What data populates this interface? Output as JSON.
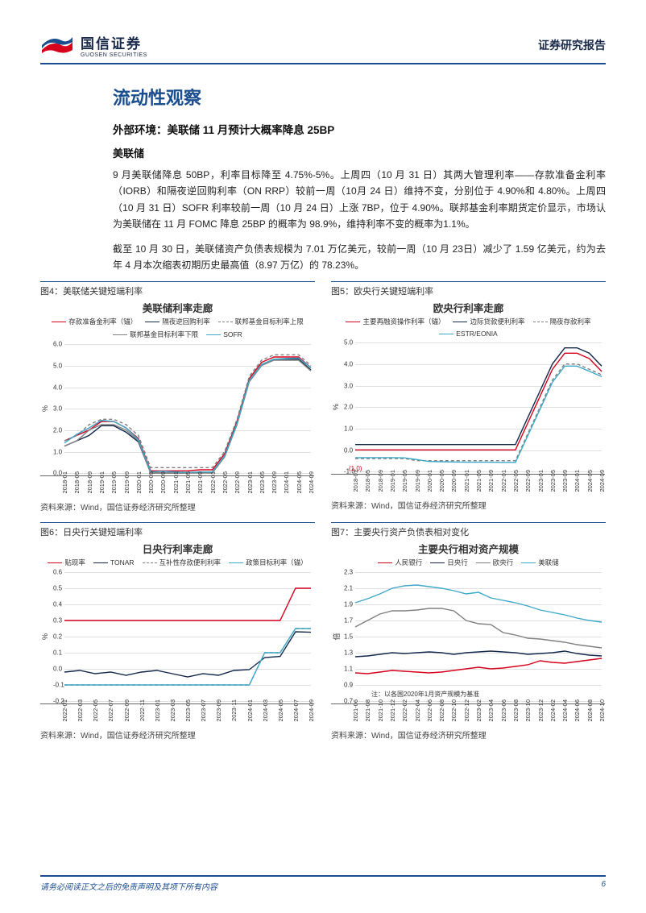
{
  "header": {
    "logo_cn": "国信证券",
    "logo_en": "GUOSEN SECURITIES",
    "report_type": "证券研究报告"
  },
  "title": "流动性观察",
  "section_title": "外部环境：美联储 11 月预计大概率降息 25BP",
  "subsection": "美联储",
  "paragraphs": [
    "9 月美联储降息 50BP，利率目标降至 4.75%-5%。上周四（10 月 31 日）其两大管理利率——存款准备金利率（IORB）和隔夜逆回购利率（ON RRP）较前一周（10月 24 日）维持不变，分别位于 4.90%和 4.80%。上周四（10 月 31 日）SOFR 利率较前一周（10 月 24 日）上涨 7BP，位于 4.90%。联邦基金利率期货定价显示，市场认为美联储在 11 月 FOMC 降息 25BP 的概率为 98.9%，维持利率不变的概率为1.1%。",
    "截至 10 月 30 日，美联储资产负债表规模为 7.01 万亿美元，较前一周（10 月 23日）减少了 1.59 亿美元，约为去年 4 月本次缩表初期历史最高值（8.97 万亿）的 78.23%。"
  ],
  "source_text": "资料来源：Wind，国信证券经济研究所整理",
  "footer": {
    "disclaimer": "请务必阅读正文之后的免责声明及其项下所有内容",
    "page": "6"
  },
  "colors": {
    "brand_blue": "#1a4d8f",
    "red": "#d6001c",
    "navy": "#14284b",
    "grey": "#808080",
    "cyan": "#3da9c9",
    "grid": "#e0e0e0",
    "axis": "#666666",
    "text": "#333333"
  },
  "chart4": {
    "type": "line",
    "caption": "图4：美联储关键短端利率",
    "title": "美联储利率走廊",
    "ylabel": "%",
    "ylim": [
      0,
      6
    ],
    "ytick_step": 1,
    "legend": [
      {
        "label": "存款准备金利率（锚）",
        "color": "#d6001c",
        "dash": "solid"
      },
      {
        "label": "隔夜逆回购利率",
        "color": "#14284b",
        "dash": "solid"
      },
      {
        "label": "联邦基金目标利率上限",
        "color": "#808080",
        "dash": "dashed"
      },
      {
        "label": "联邦基金目标利率下限",
        "color": "#808080",
        "dash": "solid"
      },
      {
        "label": "SOFR",
        "color": "#3da9c9",
        "dash": "solid"
      }
    ],
    "x_ticks": [
      "2018-01",
      "2018-05",
      "2018-09",
      "2019-01",
      "2019-05",
      "2019-09",
      "2020-01",
      "2020-05",
      "2020-09",
      "2021-01",
      "2021-05",
      "2021-09",
      "2022-01",
      "2022-05",
      "2022-09",
      "2023-01",
      "2023-05",
      "2023-09",
      "2024-01",
      "2024-05",
      "2024-09"
    ],
    "series": {
      "iorb": [
        1.5,
        1.75,
        2.0,
        2.4,
        2.4,
        2.1,
        1.6,
        0.1,
        0.1,
        0.1,
        0.1,
        0.15,
        0.15,
        0.9,
        2.4,
        4.4,
        5.15,
        5.4,
        5.4,
        5.4,
        4.9
      ],
      "onrrp": [
        1.25,
        1.5,
        1.75,
        2.2,
        2.2,
        1.9,
        1.45,
        0.0,
        0.0,
        0.0,
        0.0,
        0.05,
        0.05,
        0.8,
        2.3,
        4.3,
        5.05,
        5.3,
        5.3,
        5.3,
        4.8
      ],
      "upper": [
        1.5,
        1.75,
        2.25,
        2.5,
        2.5,
        2.25,
        1.75,
        0.25,
        0.25,
        0.25,
        0.25,
        0.25,
        0.25,
        1.0,
        2.5,
        4.5,
        5.25,
        5.5,
        5.5,
        5.5,
        5.0
      ],
      "lower": [
        1.25,
        1.5,
        2.0,
        2.25,
        2.25,
        2.0,
        1.5,
        0.0,
        0.0,
        0.0,
        0.0,
        0.0,
        0.0,
        0.75,
        2.25,
        4.25,
        5.0,
        5.25,
        5.25,
        5.25,
        4.75
      ],
      "sofr": [
        1.4,
        1.8,
        2.1,
        2.45,
        2.4,
        2.1,
        1.55,
        0.05,
        0.08,
        0.05,
        0.03,
        0.05,
        0.05,
        0.8,
        2.3,
        4.3,
        5.05,
        5.3,
        5.33,
        5.35,
        4.9
      ]
    }
  },
  "chart5": {
    "type": "line",
    "caption": "图5：欧央行关键短端利率",
    "title": "欧央行利率走廊",
    "ylabel": "%",
    "ylim": [
      -1,
      5
    ],
    "yticks": [
      -1,
      0,
      1,
      2,
      3,
      4,
      5
    ],
    "legend": [
      {
        "label": "主要再融资操作利率（锚）",
        "color": "#d6001c",
        "dash": "solid"
      },
      {
        "label": "边际贷款便利利率",
        "color": "#14284b",
        "dash": "solid"
      },
      {
        "label": "隔夜存款利率",
        "color": "#808080",
        "dash": "dashed"
      },
      {
        "label": "ESTR/EONIA",
        "color": "#3da9c9",
        "dash": "solid"
      }
    ],
    "x_ticks": [
      "2018-01",
      "2018-05",
      "2018-09",
      "2019-01",
      "2019-05",
      "2019-09",
      "2020-01",
      "2020-05",
      "2020-09",
      "2021-01",
      "2021-05",
      "2021-09",
      "2022-01",
      "2022-05",
      "2022-09",
      "2023-01",
      "2023-05",
      "2023-09",
      "2024-01",
      "2024-05",
      "2024-09"
    ],
    "annotation": "(1.0)",
    "series": {
      "mro": [
        0.0,
        0.0,
        0.0,
        0.0,
        0.0,
        0.0,
        0.0,
        0.0,
        0.0,
        0.0,
        0.0,
        0.0,
        0.0,
        0.0,
        1.25,
        2.5,
        3.75,
        4.5,
        4.5,
        4.25,
        3.65
      ],
      "mlf": [
        0.25,
        0.25,
        0.25,
        0.25,
        0.25,
        0.25,
        0.25,
        0.25,
        0.25,
        0.25,
        0.25,
        0.25,
        0.25,
        0.25,
        1.5,
        2.75,
        4.0,
        4.75,
        4.75,
        4.5,
        3.9
      ],
      "dep": [
        -0.4,
        -0.4,
        -0.4,
        -0.4,
        -0.4,
        -0.5,
        -0.5,
        -0.5,
        -0.5,
        -0.5,
        -0.5,
        -0.5,
        -0.5,
        -0.5,
        0.75,
        2.0,
        3.25,
        4.0,
        4.0,
        3.75,
        3.5
      ],
      "estr": [
        -0.36,
        -0.36,
        -0.36,
        -0.36,
        -0.37,
        -0.45,
        -0.54,
        -0.55,
        -0.56,
        -0.57,
        -0.57,
        -0.57,
        -0.58,
        -0.58,
        0.66,
        1.9,
        3.15,
        3.9,
        3.9,
        3.66,
        3.41
      ]
    }
  },
  "chart6": {
    "type": "line",
    "caption": "图6：日央行关键短端利率",
    "title": "日央行利率走廊",
    "ylabel": "%",
    "ylim": [
      -0.2,
      0.6
    ],
    "yticks": [
      -0.2,
      -0.1,
      0,
      0.1,
      0.2,
      0.3,
      0.4,
      0.5,
      0.6
    ],
    "legend": [
      {
        "label": "贴现率",
        "color": "#d6001c",
        "dash": "solid"
      },
      {
        "label": "TONAR",
        "color": "#14284b",
        "dash": "solid"
      },
      {
        "label": "互补性存款便利利率",
        "color": "#808080",
        "dash": "dashed"
      },
      {
        "label": "政策目标利率（锚）",
        "color": "#3da9c9",
        "dash": "solid"
      }
    ],
    "x_ticks": [
      "2022-01",
      "2022-03",
      "2022-05",
      "2022-07",
      "2022-09",
      "2022-11",
      "2023-01",
      "2023-03",
      "2023-05",
      "2023-07",
      "2023-09",
      "2023-11",
      "2024-01",
      "2024-03",
      "2024-05",
      "2024-07",
      "2024-09"
    ],
    "series": {
      "disc": [
        0.3,
        0.3,
        0.3,
        0.3,
        0.3,
        0.3,
        0.3,
        0.3,
        0.3,
        0.3,
        0.3,
        0.3,
        0.3,
        0.3,
        0.3,
        0.5,
        0.5
      ],
      "tonar": [
        -0.02,
        -0.01,
        -0.03,
        -0.02,
        -0.04,
        -0.02,
        -0.01,
        -0.03,
        -0.05,
        -0.03,
        -0.04,
        -0.01,
        -0.005,
        0.07,
        0.077,
        0.23,
        0.227
      ],
      "comp": [
        -0.1,
        -0.1,
        -0.1,
        -0.1,
        -0.1,
        -0.1,
        -0.1,
        -0.1,
        -0.1,
        -0.1,
        -0.1,
        -0.1,
        -0.1,
        0.1,
        0.1,
        0.25,
        0.25
      ],
      "policy": [
        -0.1,
        -0.1,
        -0.1,
        -0.1,
        -0.1,
        -0.1,
        -0.1,
        -0.1,
        -0.1,
        -0.1,
        -0.1,
        -0.1,
        -0.1,
        0.1,
        0.1,
        0.25,
        0.25
      ]
    }
  },
  "chart7": {
    "type": "line",
    "caption": "图7：主要央行资产负债表相对变化",
    "title": "主要央行相对资产规模",
    "ylabel": "倍",
    "ylim": [
      0.7,
      2.3
    ],
    "yticks": [
      0.7,
      0.9,
      1.1,
      1.3,
      1.5,
      1.7,
      1.9,
      2.1,
      2.3
    ],
    "legend": [
      {
        "label": "人民银行",
        "color": "#d6001c",
        "dash": "solid"
      },
      {
        "label": "日央行",
        "color": "#14284b",
        "dash": "solid"
      },
      {
        "label": "欧央行",
        "color": "#808080",
        "dash": "solid"
      },
      {
        "label": "美联储",
        "color": "#3da9c9",
        "dash": "solid"
      }
    ],
    "x_ticks": [
      "2021-06",
      "2021-08",
      "2021-10",
      "2021-12",
      "2022-02",
      "2022-04",
      "2022-06",
      "2022-08",
      "2022-10",
      "2022-12",
      "2023-02",
      "2023-04",
      "2023-06",
      "2023-08",
      "2023-10",
      "2023-12",
      "2024-02",
      "2024-04",
      "2024-06",
      "2024-08",
      "2024-10"
    ],
    "note": "注：以各国2020年1月资产规模为基准",
    "series": {
      "pboc": [
        1.05,
        1.04,
        1.06,
        1.08,
        1.07,
        1.06,
        1.05,
        1.06,
        1.08,
        1.1,
        1.12,
        1.1,
        1.11,
        1.13,
        1.15,
        1.2,
        1.18,
        1.17,
        1.19,
        1.21,
        1.23
      ],
      "boj": [
        1.25,
        1.26,
        1.28,
        1.3,
        1.29,
        1.3,
        1.31,
        1.3,
        1.28,
        1.3,
        1.31,
        1.32,
        1.31,
        1.3,
        1.28,
        1.29,
        1.3,
        1.32,
        1.29,
        1.27,
        1.26
      ],
      "ecb": [
        1.62,
        1.7,
        1.78,
        1.82,
        1.82,
        1.83,
        1.85,
        1.85,
        1.82,
        1.7,
        1.66,
        1.65,
        1.55,
        1.52,
        1.48,
        1.47,
        1.45,
        1.43,
        1.4,
        1.38,
        1.36
      ],
      "fed": [
        1.92,
        1.97,
        2.03,
        2.1,
        2.13,
        2.14,
        2.12,
        2.1,
        2.07,
        2.03,
        2.05,
        1.98,
        1.95,
        1.92,
        1.88,
        1.83,
        1.8,
        1.77,
        1.73,
        1.7,
        1.68
      ]
    }
  }
}
